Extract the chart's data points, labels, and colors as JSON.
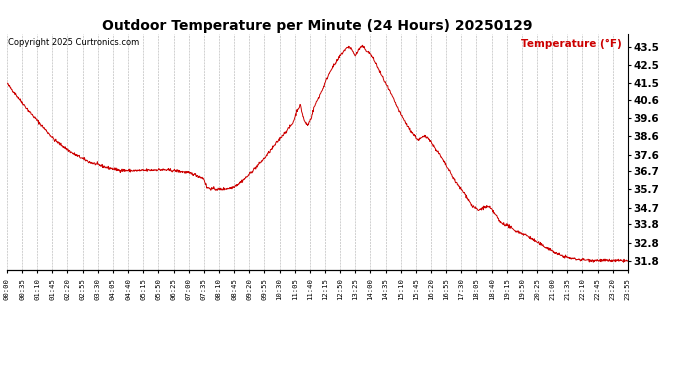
{
  "title": "Outdoor Temperature per Minute (24 Hours) 20250129",
  "copyright": "Copyright 2025 Curtronics.com",
  "legend_label": "Temperature (°F)",
  "line_color": "#cc0000",
  "legend_color": "#cc0000",
  "copyright_color": "#000000",
  "background_color": "#ffffff",
  "grid_color": "#999999",
  "yticks": [
    31.8,
    32.8,
    33.8,
    34.7,
    35.7,
    36.7,
    37.6,
    38.6,
    39.6,
    40.6,
    41.5,
    42.5,
    43.5
  ],
  "ylim": [
    31.3,
    44.2
  ],
  "xtick_interval_minutes": 35,
  "total_minutes": 1436,
  "figsize": [
    6.9,
    3.75
  ],
  "dpi": 100,
  "control_points": [
    [
      0,
      41.5
    ],
    [
      20,
      40.9
    ],
    [
      50,
      40.0
    ],
    [
      80,
      39.2
    ],
    [
      110,
      38.4
    ],
    [
      150,
      37.7
    ],
    [
      190,
      37.2
    ],
    [
      230,
      36.9
    ],
    [
      260,
      36.75
    ],
    [
      290,
      36.72
    ],
    [
      310,
      36.73
    ],
    [
      330,
      36.75
    ],
    [
      350,
      36.78
    ],
    [
      370,
      36.76
    ],
    [
      390,
      36.72
    ],
    [
      410,
      36.65
    ],
    [
      430,
      36.55
    ],
    [
      445,
      36.4
    ],
    [
      455,
      36.28
    ],
    [
      462,
      35.8
    ],
    [
      470,
      35.75
    ],
    [
      480,
      35.72
    ],
    [
      490,
      35.7
    ],
    [
      500,
      35.72
    ],
    [
      510,
      35.75
    ],
    [
      520,
      35.8
    ],
    [
      535,
      36.0
    ],
    [
      555,
      36.4
    ],
    [
      575,
      36.9
    ],
    [
      595,
      37.4
    ],
    [
      615,
      38.0
    ],
    [
      635,
      38.6
    ],
    [
      650,
      39.0
    ],
    [
      660,
      39.3
    ],
    [
      665,
      39.6
    ],
    [
      670,
      40.0
    ],
    [
      678,
      40.3
    ],
    [
      683,
      39.8
    ],
    [
      688,
      39.4
    ],
    [
      695,
      39.2
    ],
    [
      703,
      39.6
    ],
    [
      710,
      40.2
    ],
    [
      720,
      40.7
    ],
    [
      730,
      41.2
    ],
    [
      740,
      41.8
    ],
    [
      750,
      42.3
    ],
    [
      760,
      42.6
    ],
    [
      770,
      43.0
    ],
    [
      780,
      43.3
    ],
    [
      790,
      43.5
    ],
    [
      795,
      43.4
    ],
    [
      800,
      43.2
    ],
    [
      805,
      43.0
    ],
    [
      810,
      43.2
    ],
    [
      815,
      43.4
    ],
    [
      820,
      43.5
    ],
    [
      825,
      43.45
    ],
    [
      830,
      43.3
    ],
    [
      840,
      43.1
    ],
    [
      850,
      42.7
    ],
    [
      860,
      42.2
    ],
    [
      875,
      41.5
    ],
    [
      890,
      40.8
    ],
    [
      910,
      39.8
    ],
    [
      930,
      39.0
    ],
    [
      950,
      38.4
    ],
    [
      965,
      38.6
    ],
    [
      975,
      38.5
    ],
    [
      985,
      38.1
    ],
    [
      1000,
      37.6
    ],
    [
      1020,
      36.8
    ],
    [
      1040,
      36.0
    ],
    [
      1060,
      35.4
    ],
    [
      1075,
      34.8
    ],
    [
      1090,
      34.55
    ],
    [
      1100,
      34.7
    ],
    [
      1110,
      34.75
    ],
    [
      1115,
      34.72
    ],
    [
      1120,
      34.6
    ],
    [
      1130,
      34.3
    ],
    [
      1140,
      33.9
    ],
    [
      1150,
      33.8
    ],
    [
      1155,
      33.75
    ],
    [
      1160,
      33.7
    ],
    [
      1165,
      33.6
    ],
    [
      1170,
      33.5
    ],
    [
      1175,
      33.45
    ],
    [
      1180,
      33.4
    ],
    [
      1185,
      33.35
    ],
    [
      1190,
      33.3
    ],
    [
      1200,
      33.2
    ],
    [
      1210,
      33.05
    ],
    [
      1220,
      32.9
    ],
    [
      1230,
      32.75
    ],
    [
      1240,
      32.6
    ],
    [
      1250,
      32.5
    ],
    [
      1260,
      32.35
    ],
    [
      1270,
      32.2
    ],
    [
      1280,
      32.1
    ],
    [
      1300,
      31.95
    ],
    [
      1320,
      31.88
    ],
    [
      1350,
      31.83
    ],
    [
      1390,
      31.81
    ],
    [
      1435,
      31.8
    ]
  ]
}
